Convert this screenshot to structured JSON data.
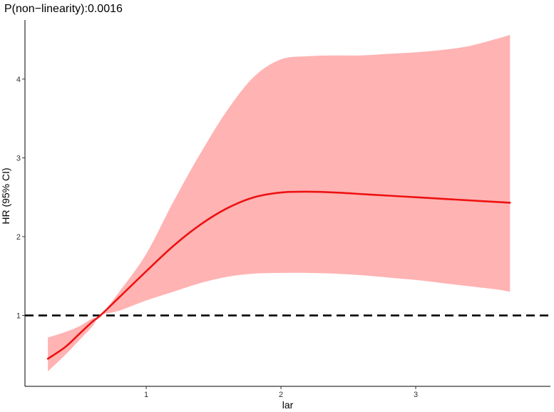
{
  "chart_data": {
    "type": "line",
    "title": "P(non−linearity):0.0016",
    "xlabel": "lar",
    "ylabel": "HR (95% CI)",
    "xlim": [
      0.1,
      4.0
    ],
    "ylim": [
      0.1,
      4.75
    ],
    "x_ticks": [
      1,
      2,
      3
    ],
    "y_ticks": [
      1,
      2,
      3,
      4
    ],
    "grid": false,
    "reference_line": {
      "y": 1,
      "style": "dashed",
      "color": "#000000"
    },
    "colors": {
      "line": "#ee1111",
      "band": "#ffb3b3",
      "axis": "#000000"
    },
    "x": [
      0.27,
      0.4,
      0.5,
      0.6,
      0.66,
      0.8,
      1.0,
      1.2,
      1.4,
      1.6,
      1.8,
      2.0,
      2.2,
      2.4,
      2.6,
      2.8,
      3.0,
      3.2,
      3.4,
      3.6,
      3.7
    ],
    "hr": [
      0.45,
      0.6,
      0.76,
      0.92,
      1.0,
      1.23,
      1.56,
      1.88,
      2.15,
      2.36,
      2.5,
      2.56,
      2.57,
      2.56,
      2.54,
      2.52,
      2.5,
      2.48,
      2.46,
      2.44,
      2.43
    ],
    "lower": [
      0.29,
      0.5,
      0.68,
      0.86,
      1.0,
      1.06,
      1.19,
      1.3,
      1.41,
      1.49,
      1.53,
      1.54,
      1.54,
      1.53,
      1.51,
      1.48,
      1.45,
      1.41,
      1.37,
      1.33,
      1.3
    ],
    "upper": [
      0.72,
      0.79,
      0.86,
      0.96,
      1.0,
      1.3,
      1.78,
      2.44,
      3.05,
      3.6,
      4.03,
      4.25,
      4.29,
      4.3,
      4.3,
      4.32,
      4.34,
      4.37,
      4.42,
      4.51,
      4.56
    ]
  }
}
